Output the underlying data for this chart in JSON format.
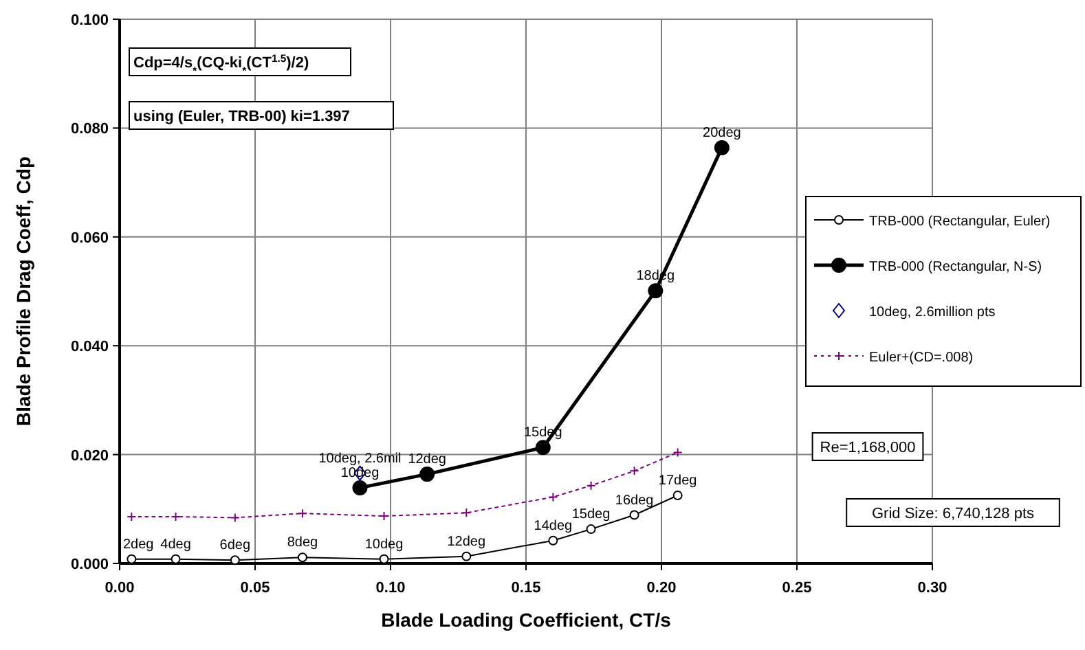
{
  "chart_data": {
    "type": "line",
    "xlabel": "Blade Loading Coefficient, CT/s",
    "ylabel": "Blade Profile Drag Coeff, Cdp",
    "xlim": [
      0,
      0.3
    ],
    "ylim": [
      0,
      0.1
    ],
    "xticks": [
      {
        "value": 0,
        "label": "0.00"
      },
      {
        "value": 0.05,
        "label": "0.05"
      },
      {
        "value": 0.1,
        "label": "0.10"
      },
      {
        "value": 0.15,
        "label": "0.15"
      },
      {
        "value": 0.2,
        "label": "0.20"
      },
      {
        "value": 0.25,
        "label": "0.25"
      },
      {
        "value": 0.3,
        "label": "0.30"
      }
    ],
    "yticks": [
      {
        "value": 0,
        "label": "0.000"
      },
      {
        "value": 0.02,
        "label": "0.020"
      },
      {
        "value": 0.04,
        "label": "0.040"
      },
      {
        "value": 0.06,
        "label": "0.060"
      },
      {
        "value": 0.08,
        "label": "0.080"
      },
      {
        "value": 0.1,
        "label": "0.100"
      }
    ],
    "grid": true,
    "legend": "right",
    "series": [
      {
        "name": "TRB-000 (Rectangular, Euler)",
        "color": "#000000",
        "marker": "circle",
        "line_style": "solid",
        "x": [
          0.0044,
          0.0207,
          0.0426,
          0.0675,
          0.0976,
          0.128,
          0.16,
          0.174,
          0.19,
          0.206
        ],
        "values": [
          0.0008,
          0.0008,
          0.0006,
          0.0011,
          0.0008,
          0.0013,
          0.0042,
          0.0063,
          0.0089,
          0.0125
        ]
      },
      {
        "name": "TRB-000 (Rectangular, N-S)",
        "color": "#000000",
        "marker": "circle",
        "line_style": "solid",
        "x": [
          0.0887,
          0.1135,
          0.1563,
          0.1978,
          0.2223
        ],
        "values": [
          0.0139,
          0.0164,
          0.0213,
          0.0501,
          0.0764
        ]
      },
      {
        "name": "10deg, 2.6million pts",
        "type": "scatter",
        "color": "#000080",
        "marker": "diamond",
        "x": [
          0.0887
        ],
        "values": [
          0.0166
        ]
      },
      {
        "name": "Euler+(CD=.008)",
        "color": "#800080",
        "marker": "cross",
        "line_style": "dotted",
        "x": [
          0.0044,
          0.0207,
          0.0426,
          0.0675,
          0.0976,
          0.128,
          0.16,
          0.174,
          0.19,
          0.206
        ],
        "values": [
          0.0086,
          0.0086,
          0.0084,
          0.0092,
          0.0087,
          0.0093,
          0.0122,
          0.0143,
          0.017,
          0.0204
        ]
      }
    ],
    "annotations": [
      "Cdp=4/s$_{*}$(CQ-ki$_{*}$(CT$^{1.5}$)/2)",
      "using (Euler, TRB-00) ki=1.397",
      "Re=1,168,000",
      "Grid Size: 6,740,128 pts",
      {
        "text": "2deg",
        "x": 0.0044,
        "y": 0.0008
      },
      {
        "text": "4deg",
        "x": 0.0207,
        "y": 0.0008
      },
      {
        "text": "6deg",
        "x": 0.0426,
        "y": 0.0006
      },
      {
        "text": "8deg",
        "x": 0.0675,
        "y": 0.0011
      },
      {
        "text": "10deg",
        "x": 0.0976,
        "y": 0.0008
      },
      {
        "text": "12deg",
        "x": 0.128,
        "y": 0.0013
      },
      {
        "text": "14deg",
        "x": 0.16,
        "y": 0.0042
      },
      {
        "text": "15deg",
        "x": 0.174,
        "y": 0.0063
      },
      {
        "text": "16deg",
        "x": 0.19,
        "y": 0.0089
      },
      {
        "text": "17deg",
        "x": 0.206,
        "y": 0.0125
      },
      {
        "text": "10deg",
        "x": 0.0887,
        "y": 0.0139
      },
      {
        "text": "12deg",
        "x": 0.1135,
        "y": 0.0164
      },
      {
        "text": "15deg",
        "x": 0.1563,
        "y": 0.0213
      },
      {
        "text": "18deg",
        "x": 0.1978,
        "y": 0.0501
      },
      {
        "text": "20deg",
        "x": 0.2223,
        "y": 0.0764
      },
      {
        "text": "10deg, 2.6mil",
        "x": 0.0887,
        "y": 0.0166
      }
    ]
  }
}
